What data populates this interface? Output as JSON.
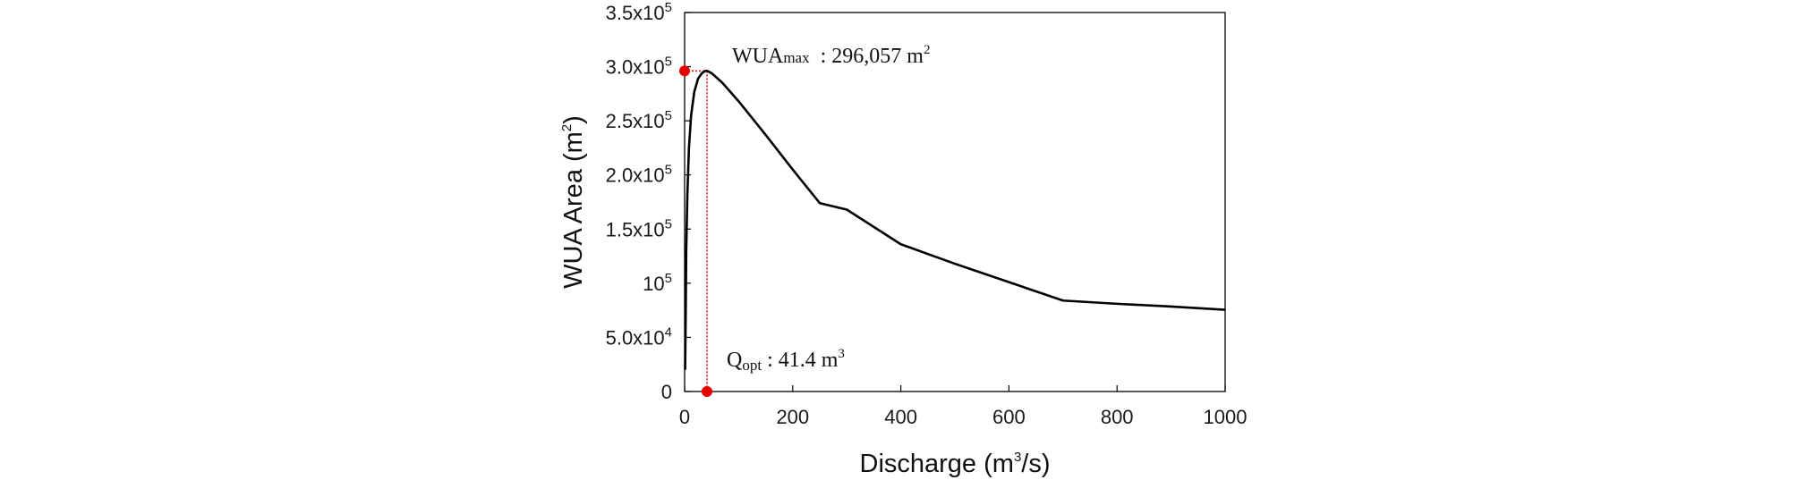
{
  "chart_data": {
    "type": "line",
    "title": "",
    "xlabel": {
      "pre": "Discharge (m",
      "sup": "3",
      "post": "/s)"
    },
    "ylabel": {
      "pre": "WUA Area (m",
      "sup": "2",
      "post": ")"
    },
    "xlim": [
      0,
      1000
    ],
    "ylim": [
      0,
      350000
    ],
    "x_ticks": [
      {
        "value": 0,
        "label": "0"
      },
      {
        "value": 200,
        "label": "200"
      },
      {
        "value": 400,
        "label": "400"
      },
      {
        "value": 600,
        "label": "600"
      },
      {
        "value": 800,
        "label": "800"
      },
      {
        "value": 1000,
        "label": "1000"
      }
    ],
    "y_ticks": [
      {
        "value": 0,
        "base": "0",
        "exp": ""
      },
      {
        "value": 50000,
        "base": "5.0x10",
        "exp": "4"
      },
      {
        "value": 100000,
        "base": "10",
        "exp": "5"
      },
      {
        "value": 150000,
        "base": "1.5x10",
        "exp": "5"
      },
      {
        "value": 200000,
        "base": "2.0x10",
        "exp": "5"
      },
      {
        "value": 250000,
        "base": "2.5x10",
        "exp": "5"
      },
      {
        "value": 300000,
        "base": "3.0x10",
        "exp": "5"
      },
      {
        "value": 350000,
        "base": "3.5x10",
        "exp": "5"
      }
    ],
    "grid": false,
    "legend": "none",
    "series": [
      {
        "color": "#000000",
        "x": [
          1,
          2,
          3,
          5,
          8,
          12,
          18,
          25,
          32,
          38,
          41.4,
          50,
          70,
          100,
          150,
          200,
          250,
          300,
          400,
          500,
          600,
          700,
          800,
          900,
          1000
        ],
        "y": [
          20000,
          70000,
          130000,
          180000,
          225000,
          255000,
          277000,
          289000,
          294000,
          296000,
          296057,
          294000,
          285000,
          268000,
          237000,
          205000,
          174000,
          168000,
          136000,
          118000,
          101000,
          84000,
          81000,
          78500,
          75500
        ]
      }
    ],
    "annotations": {
      "wua_max": {
        "label": "WUA",
        "label_sub": "max",
        "value_text": "  : 296,057 m",
        "value_sup": "2",
        "x": 41.4,
        "y": 296057,
        "color": "#e60000"
      },
      "q_opt": {
        "label": "Q",
        "label_sub": "opt",
        "value_text": " : 41.4 m",
        "value_sup": "3",
        "x": 41.4,
        "y": 0,
        "color": "#e60000"
      }
    }
  }
}
